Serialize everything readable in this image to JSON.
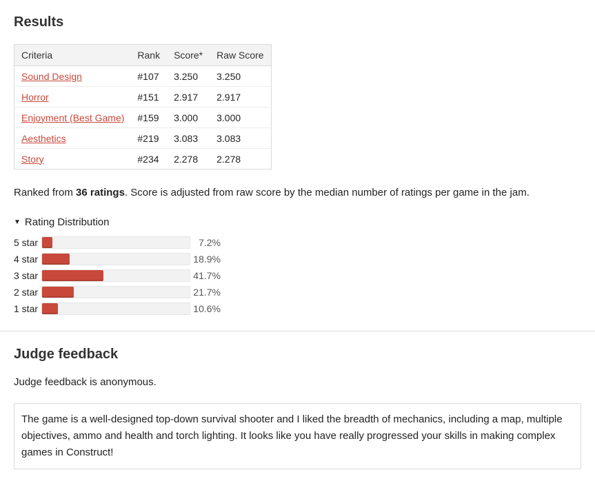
{
  "results": {
    "title": "Results",
    "table": {
      "headers": [
        "Criteria",
        "Rank",
        "Score*",
        "Raw Score"
      ],
      "rows": [
        {
          "criteria": "Sound Design",
          "rank": "#107",
          "score": "3.250",
          "raw": "3.250"
        },
        {
          "criteria": "Horror",
          "rank": "#151",
          "score": "2.917",
          "raw": "2.917"
        },
        {
          "criteria": "Enjoyment (Best Game)",
          "rank": "#159",
          "score": "3.000",
          "raw": "3.000"
        },
        {
          "criteria": "Aesthetics",
          "rank": "#219",
          "score": "3.083",
          "raw": "3.083"
        },
        {
          "criteria": "Story",
          "rank": "#234",
          "score": "2.278",
          "raw": "2.278"
        }
      ]
    },
    "ranked_prefix": "Ranked from ",
    "ratings_count": "36 ratings",
    "ranked_suffix": ". Score is adjusted from raw score by the median number of ratings per game in the jam."
  },
  "distribution": {
    "toggle_icon": "triangle-down-icon",
    "toggle_label": "Rating Distribution",
    "bar_color": "#c8493b",
    "rows": [
      {
        "label": "5 star",
        "pct_text": "7.2%",
        "value": 7.2
      },
      {
        "label": "4 star",
        "pct_text": "18.9%",
        "value": 18.9
      },
      {
        "label": "3 star",
        "pct_text": "41.7%",
        "value": 41.7
      },
      {
        "label": "2 star",
        "pct_text": "21.7%",
        "value": 21.7
      },
      {
        "label": "1 star",
        "pct_text": "10.6%",
        "value": 10.6
      }
    ]
  },
  "judge": {
    "title": "Judge feedback",
    "note": "Judge feedback is anonymous.",
    "feedback": "The game is a well-designed top-down survival shooter and I liked the breadth of mechanics, including a map, multiple objectives, ammo and health and torch lighting. It looks like you have really progressed your skills in making complex games in Construct!"
  }
}
